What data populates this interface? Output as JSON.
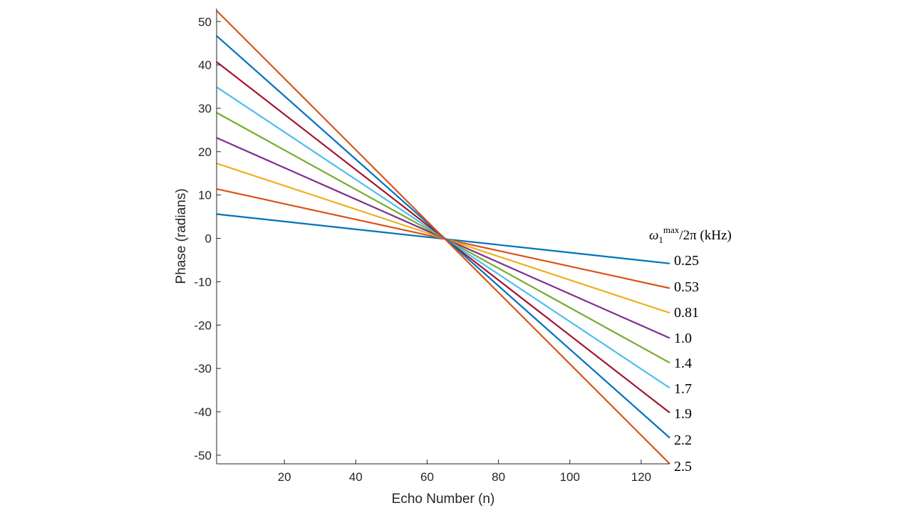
{
  "chart_data": {
    "type": "line",
    "title": "",
    "xlabel": "Echo Number (n)",
    "ylabel": "Phase (radians)",
    "xlim": [
      1,
      128
    ],
    "ylim": [
      -52,
      53
    ],
    "xticks": [
      20,
      40,
      60,
      80,
      100,
      120
    ],
    "yticks": [
      50,
      40,
      30,
      20,
      10,
      0,
      -10,
      -20,
      -30,
      -40,
      -50
    ],
    "grid": false,
    "legend": {
      "title_main": "ω",
      "title_sub": "1",
      "title_sup": "max",
      "title_rest": "/2π (kHz)",
      "placement": "right"
    },
    "series": [
      {
        "name": "0.25",
        "color": "#0072BD",
        "x": [
          1,
          128
        ],
        "values": [
          5.6,
          -5.8
        ]
      },
      {
        "name": "0.53",
        "color": "#D95319",
        "x": [
          1,
          128
        ],
        "values": [
          11.4,
          -11.5
        ]
      },
      {
        "name": "0.81",
        "color": "#EDB120",
        "x": [
          1,
          128
        ],
        "values": [
          17.3,
          -17.2
        ]
      },
      {
        "name": "1.0",
        "color": "#7E2F8E",
        "x": [
          1,
          128
        ],
        "values": [
          23.2,
          -23.0
        ]
      },
      {
        "name": "1.4",
        "color": "#77AC30",
        "x": [
          1,
          128
        ],
        "values": [
          29.0,
          -28.7
        ]
      },
      {
        "name": "1.7",
        "color": "#4DBEEE",
        "x": [
          1,
          128
        ],
        "values": [
          34.9,
          -34.5
        ]
      },
      {
        "name": "1.9",
        "color": "#A2142F",
        "x": [
          1,
          128
        ],
        "values": [
          40.7,
          -40.2
        ]
      },
      {
        "name": "2.2",
        "color": "#0072BD",
        "x": [
          1,
          128
        ],
        "values": [
          46.7,
          -46.0
        ]
      },
      {
        "name": "2.5",
        "color": "#D95319",
        "x": [
          1,
          128
        ],
        "values": [
          52.5,
          -52.0
        ]
      }
    ]
  }
}
